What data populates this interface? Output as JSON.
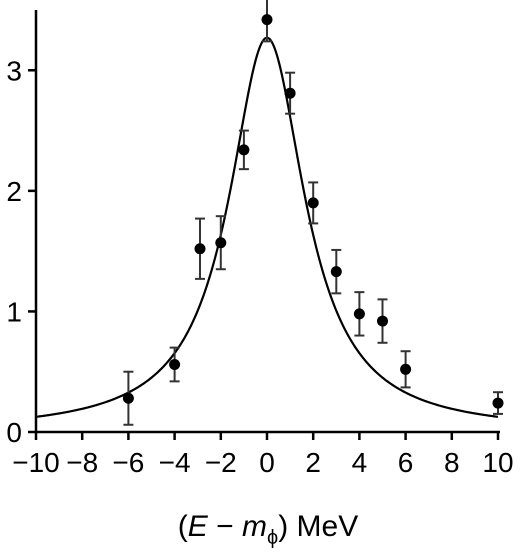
{
  "chart_data": {
    "type": "scatter",
    "title": "",
    "xlabel": {
      "prefix": "(",
      "var_e": "E",
      "minus": " − ",
      "var_m": "m",
      "subscript": "ϕ",
      "suffix": ") MeV"
    },
    "ylabel": "",
    "xlim": [
      -10,
      10
    ],
    "ylim": [
      0,
      3.5
    ],
    "xticks": [
      -10,
      -8,
      -6,
      -4,
      -2,
      0,
      2,
      4,
      6,
      8,
      10
    ],
    "xtick_labels": [
      "−10",
      "−8",
      "−6",
      "−4",
      "−2",
      "0",
      "2",
      "4",
      "6",
      "8",
      "10"
    ],
    "yticks": [
      0,
      1,
      2,
      3
    ],
    "ytick_labels": [
      "0",
      "1",
      "2",
      "3"
    ],
    "grid": false,
    "series": [
      {
        "kind": "points-with-error-bars",
        "color": "#000000",
        "points": [
          {
            "x": -6.0,
            "y": 0.28,
            "err": 0.22
          },
          {
            "x": -4.0,
            "y": 0.56,
            "err": 0.14
          },
          {
            "x": -2.9,
            "y": 1.52,
            "err": 0.25
          },
          {
            "x": -2.0,
            "y": 1.57,
            "err": 0.22
          },
          {
            "x": -1.0,
            "y": 2.34,
            "err": 0.16
          },
          {
            "x": 0.0,
            "y": 3.42,
            "err": 0.18
          },
          {
            "x": 1.0,
            "y": 2.81,
            "err": 0.17
          },
          {
            "x": 2.0,
            "y": 1.9,
            "err": 0.17
          },
          {
            "x": 3.0,
            "y": 1.33,
            "err": 0.18
          },
          {
            "x": 4.0,
            "y": 0.98,
            "err": 0.18
          },
          {
            "x": 5.0,
            "y": 0.92,
            "err": 0.18
          },
          {
            "x": 6.0,
            "y": 0.52,
            "err": 0.15
          },
          {
            "x": 10.0,
            "y": 0.24,
            "err": 0.09
          }
        ]
      },
      {
        "kind": "fit-curve",
        "shape": "lorentzian",
        "color": "#000000",
        "peak": 3.27,
        "center": 0.0,
        "hwhm": 2.0,
        "baseline": 0.0
      }
    ]
  }
}
